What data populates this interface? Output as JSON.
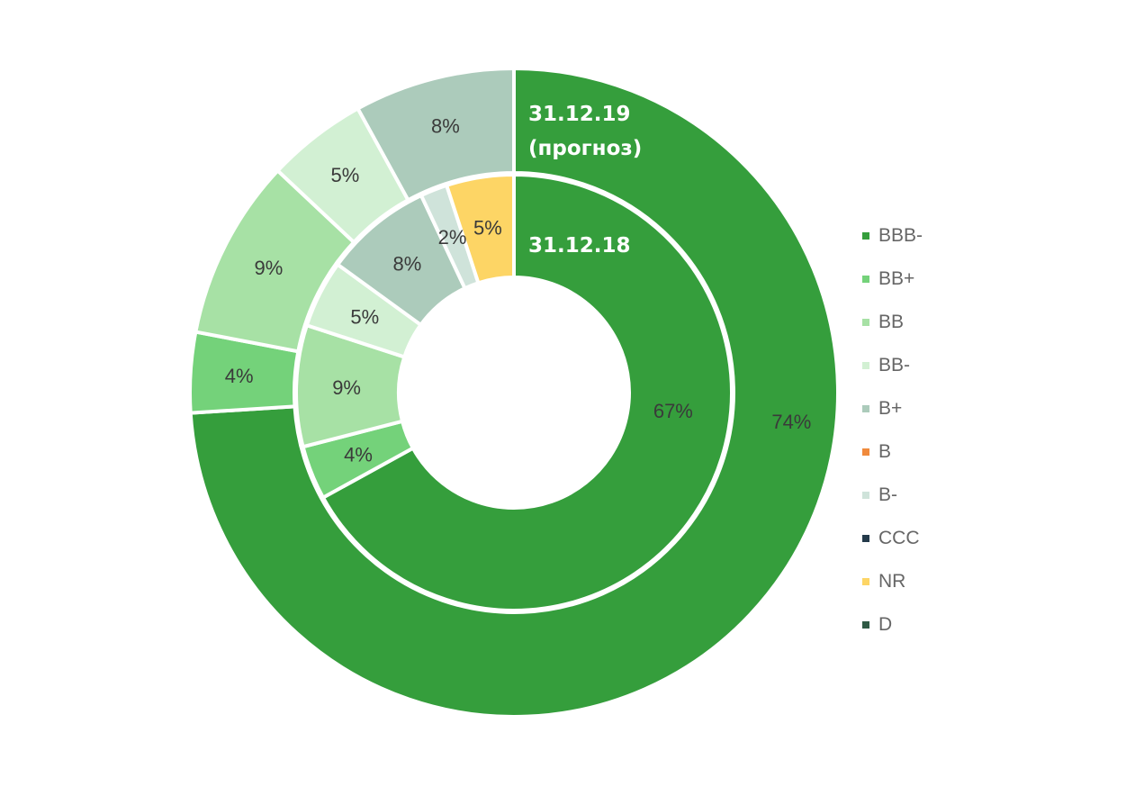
{
  "chart_data": {
    "type": "donut",
    "legend_position": "right",
    "categories": [
      "BBB-",
      "BB+",
      "BB",
      "BB-",
      "B+",
      "B",
      "B-",
      "CCC",
      "NR",
      "D"
    ],
    "colors": {
      "BBB-": "#359e3c",
      "BB+": "#74d27a",
      "BB": "#a7e1a5",
      "BB-": "#d2f0d3",
      "B+": "#accbbb",
      "B": "#f08a3c",
      "B-": "#cfe3da",
      "CCC": "#243a4a",
      "NR": "#fdd565",
      "D": "#2f5a45"
    },
    "series": [
      {
        "name": "31.12.19 (прогноз)",
        "ring": "outer",
        "title_lines": [
          "31.12.19",
          "(прогноз)"
        ],
        "values": [
          74,
          4,
          9,
          5,
          8,
          0,
          0,
          0,
          0,
          0
        ],
        "labels": [
          "74%",
          "4%",
          "9%",
          "5%",
          "8%",
          "",
          "",
          "",
          "",
          ""
        ]
      },
      {
        "name": "31.12.18",
        "ring": "inner",
        "title_lines": [
          "31.12.18"
        ],
        "values": [
          67,
          4,
          9,
          5,
          8,
          0,
          2,
          0,
          5,
          0
        ],
        "labels": [
          "67%",
          "4%",
          "9%",
          "5%",
          "8%",
          "",
          "2%",
          "",
          "5%",
          ""
        ]
      }
    ]
  }
}
